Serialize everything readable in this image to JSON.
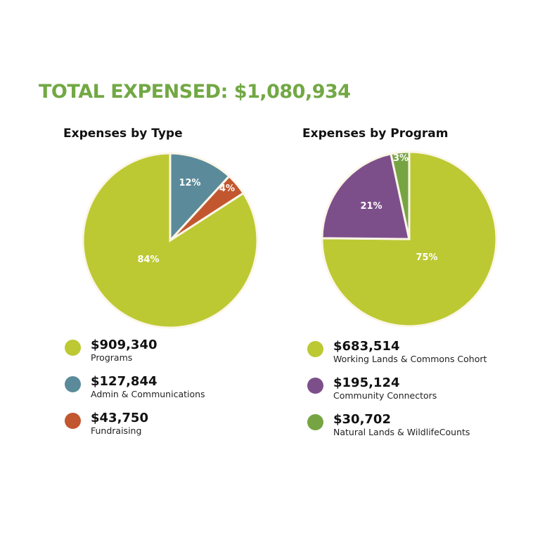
{
  "total_label": "TOTAL EXPENSED: $1,080,934",
  "colors": {
    "title": "#72a844",
    "programs": "#bcc932",
    "admin": "#5b8b9a",
    "fundraising": "#c2572f",
    "community": "#7d4f8a",
    "natural": "#76a443",
    "stroke": "#fbf6e8"
  },
  "chart_data": [
    {
      "type": "pie",
      "title": "Expenses by Type",
      "slices": [
        {
          "name": "Admin & Communications",
          "amount_label": "$127,844",
          "value": 127844,
          "percent_label": "12%",
          "color": "#5b8b9a"
        },
        {
          "name": "Fundraising",
          "amount_label": "$43,750",
          "value": 43750,
          "percent_label": "4%",
          "color": "#c2572f"
        },
        {
          "name": "Programs",
          "amount_label": "$909,340",
          "value": 909340,
          "percent_label": "84%",
          "color": "#bcc932"
        }
      ],
      "legend_order": [
        2,
        0,
        1
      ]
    },
    {
      "type": "pie",
      "title": "Expenses by Program",
      "slices": [
        {
          "name": "Working Lands & Commons Cohort",
          "amount_label": "$683,514",
          "value": 683514,
          "percent_label": "75%",
          "color": "#bcc932"
        },
        {
          "name": "Community Connectors",
          "amount_label": "$195,124",
          "value": 195124,
          "percent_label": "21%",
          "color": "#7d4f8a"
        },
        {
          "name": "Natural Lands & WildlifeCounts",
          "amount_label": "$30,702",
          "value": 30702,
          "percent_label": "3%",
          "color": "#76a443"
        }
      ],
      "legend_order": [
        0,
        1,
        2
      ]
    }
  ]
}
